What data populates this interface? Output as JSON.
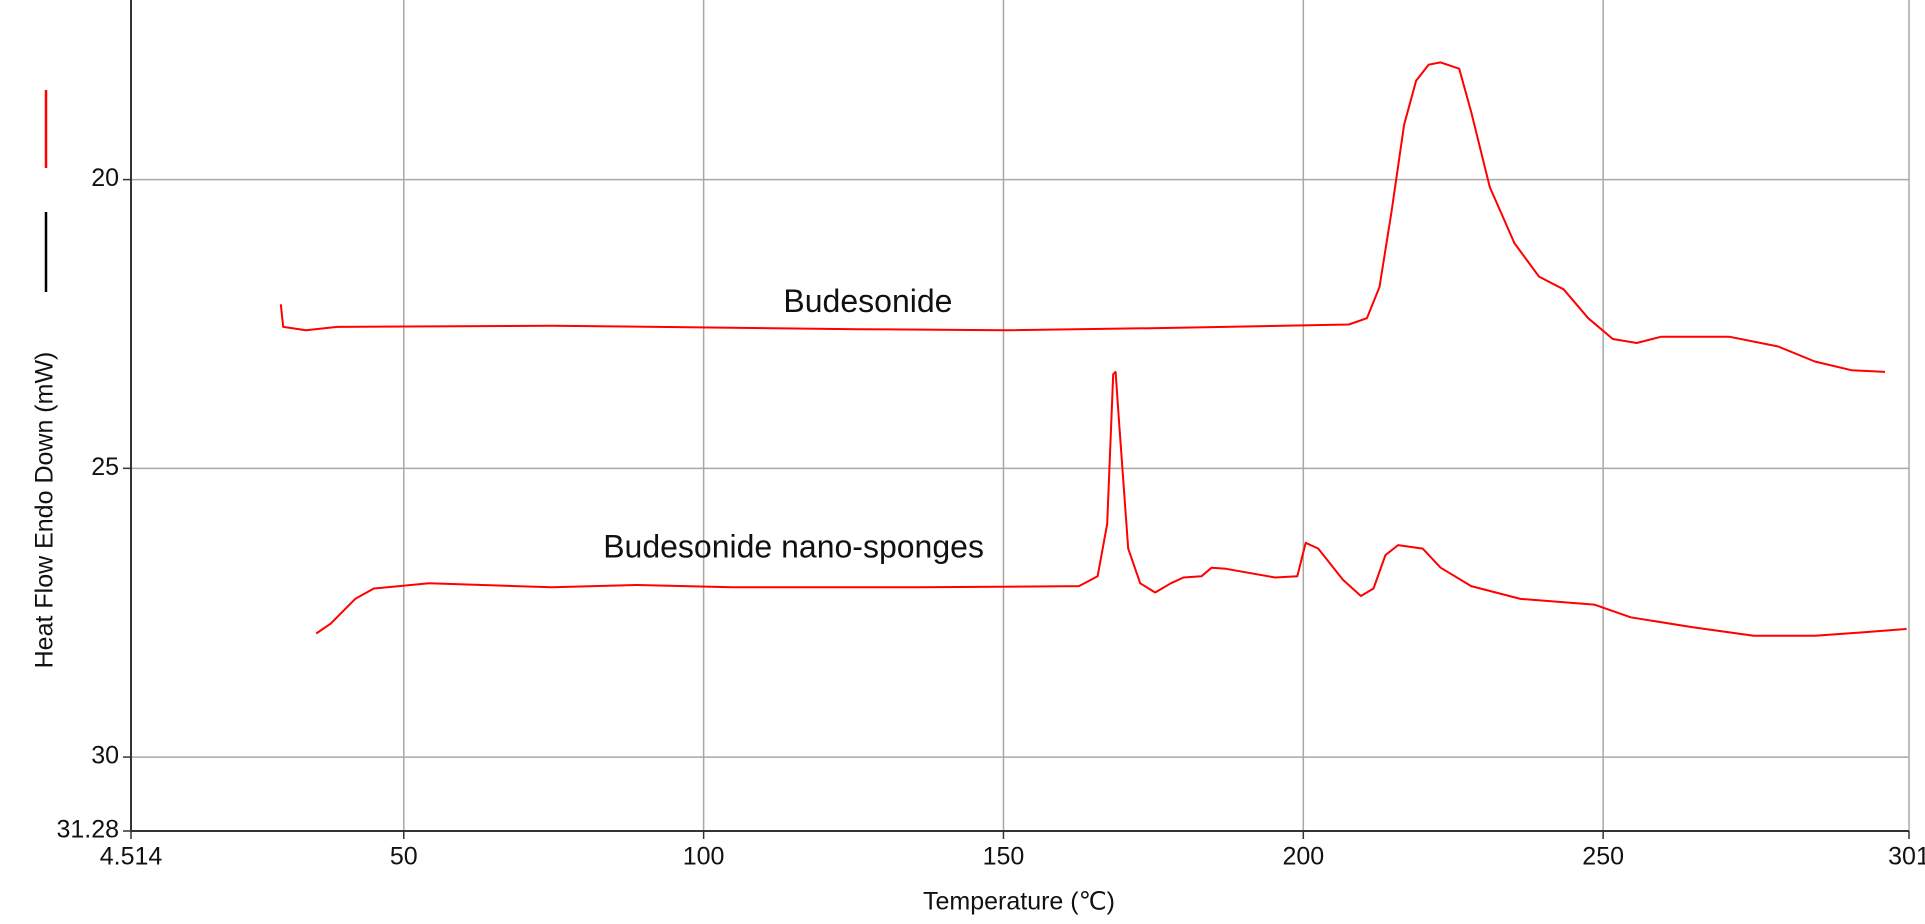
{
  "chart_data": {
    "type": "line",
    "x_label": "Temperature (℃)",
    "y_label": "Heat Flow Endo Down (mW)",
    "xlim": [
      4.514,
      301
    ],
    "xticks": [
      4.514,
      50,
      100,
      150,
      200,
      250,
      301
    ],
    "ylim": [
      31.28,
      16.89
    ],
    "yticks": [
      20,
      25,
      30,
      31.28
    ],
    "grid": true,
    "series": [
      {
        "name": "Budesonide",
        "color": "#ff0000",
        "x": [
          29.5,
          29.9,
          33.7,
          38.9,
          74.7,
          125.8,
          150.3,
          176.9,
          207.6,
          210.6,
          212.7,
          214.7,
          216.8,
          218.8,
          220.9,
          222.9,
          226.0,
          228.0,
          231.1,
          235.2,
          239.3,
          243.4,
          247.5,
          251.6,
          255.6,
          259.7,
          271.0,
          279.2,
          285.3,
          291.4,
          297.0
        ],
        "values": [
          22.16,
          22.55,
          22.61,
          22.55,
          22.53,
          22.59,
          22.61,
          22.57,
          22.51,
          22.4,
          21.86,
          20.56,
          19.05,
          18.29,
          18.01,
          17.97,
          18.08,
          18.83,
          20.13,
          21.1,
          21.68,
          21.9,
          22.4,
          22.76,
          22.83,
          22.72,
          22.72,
          22.89,
          23.15,
          23.3,
          23.33
        ]
      },
      {
        "name": "Budesonide nano-sponges",
        "color": "#ff0000",
        "x": [
          35.4,
          37.8,
          41.9,
          45.0,
          54.2,
          74.7,
          88.9,
          104.8,
          135.8,
          162.6,
          165.7,
          167.3,
          168.3,
          168.7,
          169.3,
          170.8,
          172.8,
          175.3,
          177.9,
          180.0,
          183.0,
          184.7,
          187.1,
          195.3,
          199.0,
          200.4,
          202.5,
          206.6,
          209.6,
          211.7,
          213.7,
          215.8,
          219.9,
          222.9,
          228.0,
          236.2,
          248.5,
          254.6,
          264.8,
          275.1,
          285.3,
          293.5,
          300.6
        ],
        "values": [
          27.86,
          27.69,
          27.26,
          27.08,
          26.99,
          27.06,
          27.02,
          27.06,
          27.06,
          27.04,
          26.87,
          25.96,
          23.37,
          23.33,
          24.23,
          26.39,
          26.99,
          27.15,
          26.99,
          26.89,
          26.87,
          26.72,
          26.74,
          26.89,
          26.87,
          26.29,
          26.39,
          26.93,
          27.21,
          27.08,
          26.5,
          26.33,
          26.39,
          26.72,
          27.04,
          27.26,
          27.36,
          27.58,
          27.75,
          27.9,
          27.9,
          27.84,
          27.78
        ]
      }
    ]
  }
}
